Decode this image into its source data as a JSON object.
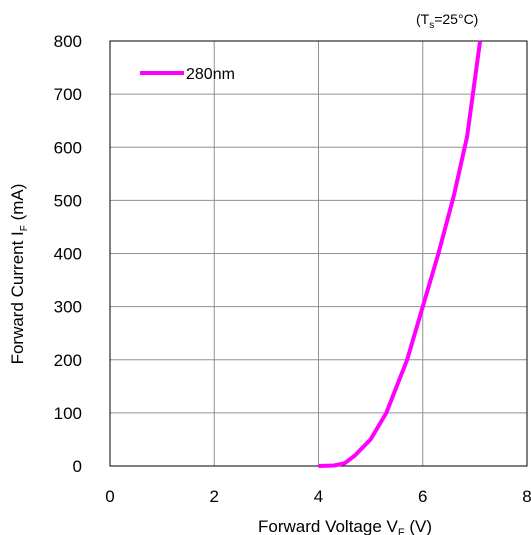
{
  "chart_data": {
    "type": "line",
    "annotation": {
      "open": "(T",
      "sub": "s",
      "rest": "=25°C)"
    },
    "xlabel": {
      "main": "Forward Voltage V",
      "sub": "F",
      "unit": " (V)"
    },
    "ylabel": {
      "main": "Forward Current I",
      "sub": "F",
      "unit": " (mA)"
    },
    "xlim": [
      0,
      8
    ],
    "ylim": [
      0,
      800
    ],
    "xticks": [
      0,
      2,
      4,
      6,
      8
    ],
    "yticks": [
      0,
      100,
      200,
      300,
      400,
      500,
      600,
      700,
      800
    ],
    "grid": true,
    "legend_position": "top-left",
    "series": [
      {
        "name": "280nm",
        "color": "#ff00ff",
        "x": [
          4.0,
          4.3,
          4.5,
          4.7,
          5.0,
          5.3,
          5.7,
          6.0,
          6.3,
          6.6,
          6.85,
          7.1
        ],
        "y": [
          0,
          1,
          5,
          20,
          50,
          100,
          200,
          300,
          400,
          510,
          620,
          800
        ]
      }
    ]
  }
}
